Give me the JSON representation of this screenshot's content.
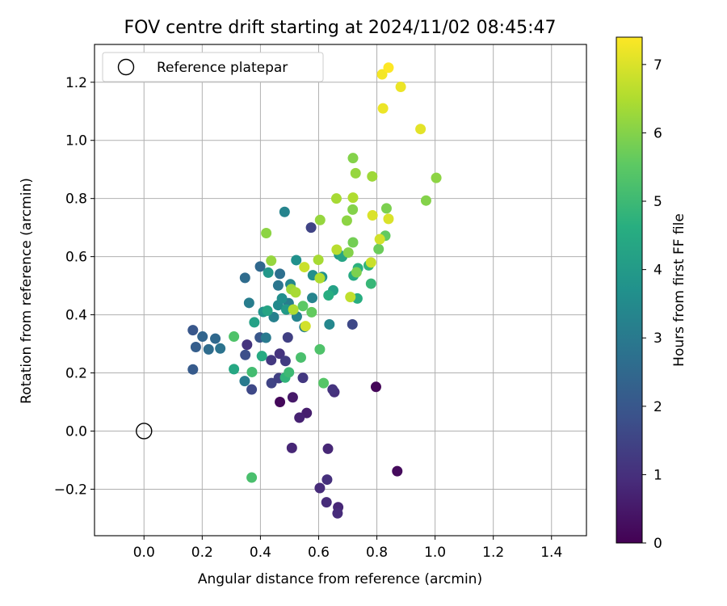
{
  "chart_data": {
    "type": "scatter",
    "title": "FOV centre drift starting at 2024/11/02 08:45:47",
    "xlabel": "Angular distance from reference (arcmin)",
    "ylabel": "Rotation from reference (arcmin)",
    "xlim": [
      -0.17,
      1.52
    ],
    "ylim": [
      -0.36,
      1.33
    ],
    "xticks": [
      "0.0",
      "0.2",
      "0.4",
      "0.6",
      "0.8",
      "1.0",
      "1.2",
      "1.4"
    ],
    "xtick_values": [
      0.0,
      0.2,
      0.4,
      0.6,
      0.8,
      1.0,
      1.2,
      1.4
    ],
    "yticks": [
      "−0.2",
      "0.0",
      "0.2",
      "0.4",
      "0.6",
      "0.8",
      "1.0",
      "1.2"
    ],
    "ytick_values": [
      -0.2,
      0.0,
      0.2,
      0.4,
      0.6,
      0.8,
      1.0,
      1.2
    ],
    "grid": true,
    "legend": {
      "placement": "top-left",
      "entries": [
        "Reference platepar"
      ]
    },
    "reference_point": {
      "label": "Reference platepar",
      "x": 0.0,
      "y": 0.0,
      "marker": "hollow-circle"
    },
    "colorbar": {
      "label": "Hours from first FF file",
      "colormap": "viridis",
      "min": 0,
      "max": 7.4,
      "ticks": [
        "0",
        "1",
        "2",
        "3",
        "4",
        "5",
        "6",
        "7"
      ],
      "tick_values": [
        0,
        1,
        2,
        3,
        4,
        5,
        6,
        7
      ]
    },
    "points": [
      {
        "x": 0.467,
        "y": 0.1,
        "t": 0.15
      },
      {
        "x": 0.797,
        "y": 0.152,
        "t": 0.1
      },
      {
        "x": 0.87,
        "y": -0.138,
        "t": 0.2
      },
      {
        "x": 0.511,
        "y": 0.116,
        "t": 0.5
      },
      {
        "x": 0.559,
        "y": 0.062,
        "t": 0.6
      },
      {
        "x": 0.534,
        "y": 0.046,
        "t": 0.7
      },
      {
        "x": 0.508,
        "y": -0.058,
        "t": 0.8
      },
      {
        "x": 0.632,
        "y": -0.061,
        "t": 0.8
      },
      {
        "x": 0.604,
        "y": -0.196,
        "t": 0.9
      },
      {
        "x": 0.629,
        "y": -0.167,
        "t": 1.0
      },
      {
        "x": 0.627,
        "y": -0.245,
        "t": 0.9
      },
      {
        "x": 0.667,
        "y": -0.262,
        "t": 0.8
      },
      {
        "x": 0.665,
        "y": -0.283,
        "t": 0.9
      },
      {
        "x": 0.654,
        "y": 0.134,
        "t": 1.0
      },
      {
        "x": 0.648,
        "y": 0.143,
        "t": 1.1
      },
      {
        "x": 0.546,
        "y": 0.183,
        "t": 1.2
      },
      {
        "x": 0.466,
        "y": 0.266,
        "t": 1.1
      },
      {
        "x": 0.354,
        "y": 0.297,
        "t": 1.1
      },
      {
        "x": 0.437,
        "y": 0.244,
        "t": 1.2
      },
      {
        "x": 0.486,
        "y": 0.241,
        "t": 1.3
      },
      {
        "x": 0.438,
        "y": 0.165,
        "t": 1.5
      },
      {
        "x": 0.37,
        "y": 0.143,
        "t": 1.6
      },
      {
        "x": 0.463,
        "y": 0.182,
        "t": 1.4
      },
      {
        "x": 0.574,
        "y": 0.7,
        "t": 1.5
      },
      {
        "x": 0.494,
        "y": 0.322,
        "t": 1.4
      },
      {
        "x": 0.716,
        "y": 0.367,
        "t": 1.6
      },
      {
        "x": 0.348,
        "y": 0.262,
        "t": 1.8
      },
      {
        "x": 0.398,
        "y": 0.322,
        "t": 2.0
      },
      {
        "x": 0.168,
        "y": 0.347,
        "t": 2.0
      },
      {
        "x": 0.178,
        "y": 0.289,
        "t": 2.2
      },
      {
        "x": 0.168,
        "y": 0.212,
        "t": 2.1
      },
      {
        "x": 0.201,
        "y": 0.325,
        "t": 2.4
      },
      {
        "x": 0.245,
        "y": 0.318,
        "t": 2.5
      },
      {
        "x": 0.222,
        "y": 0.281,
        "t": 2.6
      },
      {
        "x": 0.262,
        "y": 0.284,
        "t": 2.8
      },
      {
        "x": 0.347,
        "y": 0.527,
        "t": 2.6
      },
      {
        "x": 0.399,
        "y": 0.566,
        "t": 2.5
      },
      {
        "x": 0.467,
        "y": 0.541,
        "t": 2.7
      },
      {
        "x": 0.461,
        "y": 0.501,
        "t": 2.9
      },
      {
        "x": 0.419,
        "y": 0.321,
        "t": 3.0
      },
      {
        "x": 0.346,
        "y": 0.172,
        "t": 3.0
      },
      {
        "x": 0.483,
        "y": 0.754,
        "t": 3.3
      },
      {
        "x": 0.361,
        "y": 0.441,
        "t": 3.1
      },
      {
        "x": 0.446,
        "y": 0.392,
        "t": 3.2
      },
      {
        "x": 0.497,
        "y": 0.44,
        "t": 3.1
      },
      {
        "x": 0.525,
        "y": 0.394,
        "t": 3.3
      },
      {
        "x": 0.503,
        "y": 0.505,
        "t": 3.4
      },
      {
        "x": 0.551,
        "y": 0.358,
        "t": 3.2
      },
      {
        "x": 0.578,
        "y": 0.458,
        "t": 3.3
      },
      {
        "x": 0.637,
        "y": 0.367,
        "t": 3.4
      },
      {
        "x": 0.461,
        "y": 0.433,
        "t": 3.5
      },
      {
        "x": 0.474,
        "y": 0.456,
        "t": 3.6
      },
      {
        "x": 0.523,
        "y": 0.588,
        "t": 3.7
      },
      {
        "x": 0.58,
        "y": 0.536,
        "t": 3.6
      },
      {
        "x": 0.612,
        "y": 0.53,
        "t": 3.7
      },
      {
        "x": 0.41,
        "y": 0.41,
        "t": 3.8
      },
      {
        "x": 0.427,
        "y": 0.545,
        "t": 3.9
      },
      {
        "x": 0.489,
        "y": 0.418,
        "t": 4.0
      },
      {
        "x": 0.67,
        "y": 0.607,
        "t": 4.0
      },
      {
        "x": 0.65,
        "y": 0.484,
        "t": 4.2
      },
      {
        "x": 0.681,
        "y": 0.6,
        "t": 4.3
      },
      {
        "x": 0.72,
        "y": 0.535,
        "t": 4.5
      },
      {
        "x": 0.733,
        "y": 0.456,
        "t": 4.6
      },
      {
        "x": 0.735,
        "y": 0.56,
        "t": 4.7
      },
      {
        "x": 0.772,
        "y": 0.57,
        "t": 4.8
      },
      {
        "x": 0.78,
        "y": 0.507,
        "t": 4.9
      },
      {
        "x": 0.634,
        "y": 0.467,
        "t": 4.6
      },
      {
        "x": 0.309,
        "y": 0.213,
        "t": 4.4
      },
      {
        "x": 0.405,
        "y": 0.258,
        "t": 4.5
      },
      {
        "x": 0.424,
        "y": 0.414,
        "t": 4.3
      },
      {
        "x": 0.379,
        "y": 0.374,
        "t": 4.2
      },
      {
        "x": 0.485,
        "y": 0.184,
        "t": 4.8
      },
      {
        "x": 0.498,
        "y": 0.202,
        "t": 5.0
      },
      {
        "x": 0.371,
        "y": 0.203,
        "t": 5.1
      },
      {
        "x": 0.37,
        "y": -0.16,
        "t": 5.2
      },
      {
        "x": 0.309,
        "y": 0.325,
        "t": 5.3
      },
      {
        "x": 0.539,
        "y": 0.253,
        "t": 5.2
      },
      {
        "x": 0.604,
        "y": 0.281,
        "t": 5.3
      },
      {
        "x": 0.617,
        "y": 0.165,
        "t": 5.4
      },
      {
        "x": 0.546,
        "y": 0.43,
        "t": 5.5
      },
      {
        "x": 0.576,
        "y": 0.409,
        "t": 5.6
      },
      {
        "x": 0.829,
        "y": 0.672,
        "t": 5.6
      },
      {
        "x": 0.806,
        "y": 0.626,
        "t": 5.7
      },
      {
        "x": 0.718,
        "y": 0.649,
        "t": 5.8
      },
      {
        "x": 0.73,
        "y": 0.546,
        "t": 5.9
      },
      {
        "x": 0.702,
        "y": 0.614,
        "t": 6.0
      },
      {
        "x": 0.697,
        "y": 0.724,
        "t": 6.1
      },
      {
        "x": 0.717,
        "y": 0.762,
        "t": 6.0
      },
      {
        "x": 0.833,
        "y": 0.766,
        "t": 5.9
      },
      {
        "x": 0.969,
        "y": 0.793,
        "t": 6.0
      },
      {
        "x": 1.004,
        "y": 0.871,
        "t": 6.1
      },
      {
        "x": 0.718,
        "y": 0.939,
        "t": 6.0
      },
      {
        "x": 0.727,
        "y": 0.887,
        "t": 6.2
      },
      {
        "x": 0.784,
        "y": 0.876,
        "t": 6.3
      },
      {
        "x": 0.605,
        "y": 0.726,
        "t": 6.2
      },
      {
        "x": 0.661,
        "y": 0.8,
        "t": 6.4
      },
      {
        "x": 0.718,
        "y": 0.803,
        "t": 6.5
      },
      {
        "x": 0.437,
        "y": 0.586,
        "t": 6.2
      },
      {
        "x": 0.42,
        "y": 0.681,
        "t": 6.1
      },
      {
        "x": 0.506,
        "y": 0.488,
        "t": 6.3
      },
      {
        "x": 0.521,
        "y": 0.477,
        "t": 6.4
      },
      {
        "x": 0.513,
        "y": 0.418,
        "t": 6.5
      },
      {
        "x": 0.599,
        "y": 0.589,
        "t": 6.4
      },
      {
        "x": 0.604,
        "y": 0.526,
        "t": 6.5
      },
      {
        "x": 0.662,
        "y": 0.624,
        "t": 6.6
      },
      {
        "x": 0.709,
        "y": 0.461,
        "t": 6.7
      },
      {
        "x": 0.551,
        "y": 0.564,
        "t": 6.8
      },
      {
        "x": 0.555,
        "y": 0.361,
        "t": 6.9
      },
      {
        "x": 0.78,
        "y": 0.58,
        "t": 6.8
      },
      {
        "x": 0.81,
        "y": 0.66,
        "t": 6.9
      },
      {
        "x": 0.84,
        "y": 0.73,
        "t": 7.0
      },
      {
        "x": 0.785,
        "y": 0.742,
        "t": 7.0
      },
      {
        "x": 0.95,
        "y": 1.039,
        "t": 7.1
      },
      {
        "x": 0.821,
        "y": 1.11,
        "t": 7.2
      },
      {
        "x": 0.882,
        "y": 1.184,
        "t": 7.2
      },
      {
        "x": 0.818,
        "y": 1.227,
        "t": 7.3
      },
      {
        "x": 0.84,
        "y": 1.25,
        "t": 7.4
      }
    ]
  }
}
